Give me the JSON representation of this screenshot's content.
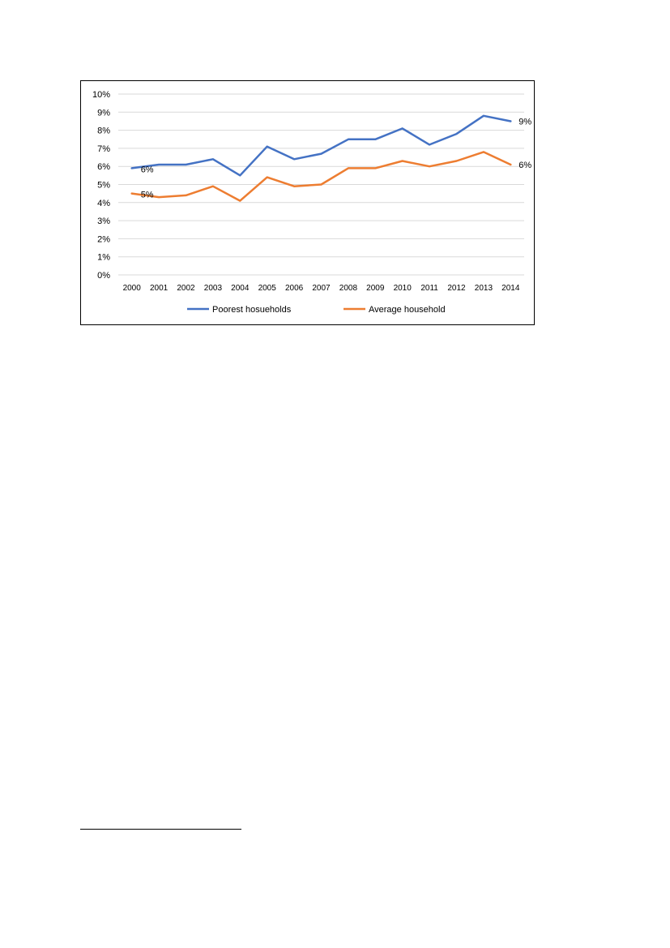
{
  "chart_data": {
    "type": "line",
    "title": "",
    "xlabel": "",
    "ylabel": "",
    "categories": [
      "2000",
      "2001",
      "2002",
      "2003",
      "2004",
      "2005",
      "2006",
      "2007",
      "2008",
      "2009",
      "2010",
      "2011",
      "2012",
      "2013",
      "2014"
    ],
    "ylim": [
      0,
      10
    ],
    "y_ticks": [
      "0%",
      "1%",
      "2%",
      "3%",
      "4%",
      "5%",
      "6%",
      "7%",
      "8%",
      "9%",
      "10%"
    ],
    "grid": true,
    "legend_position": "bottom",
    "series": [
      {
        "name": "Poorest hosueholds",
        "color": "#4472C4",
        "values": [
          5.9,
          6.1,
          6.1,
          6.4,
          5.5,
          7.1,
          6.4,
          6.7,
          7.5,
          7.5,
          8.1,
          7.2,
          7.8,
          8.8,
          8.5
        ],
        "labels": [
          {
            "index": 0,
            "text": "6%"
          },
          {
            "index": 14,
            "text": "9%"
          }
        ]
      },
      {
        "name": "Average household",
        "color": "#ED7D31",
        "values": [
          4.5,
          4.3,
          4.4,
          4.9,
          4.1,
          5.4,
          4.9,
          5.0,
          5.9,
          5.9,
          6.3,
          6.0,
          6.3,
          6.8,
          6.1
        ],
        "labels": [
          {
            "index": 0,
            "text": "5%"
          },
          {
            "index": 14,
            "text": "6%"
          }
        ]
      }
    ]
  }
}
